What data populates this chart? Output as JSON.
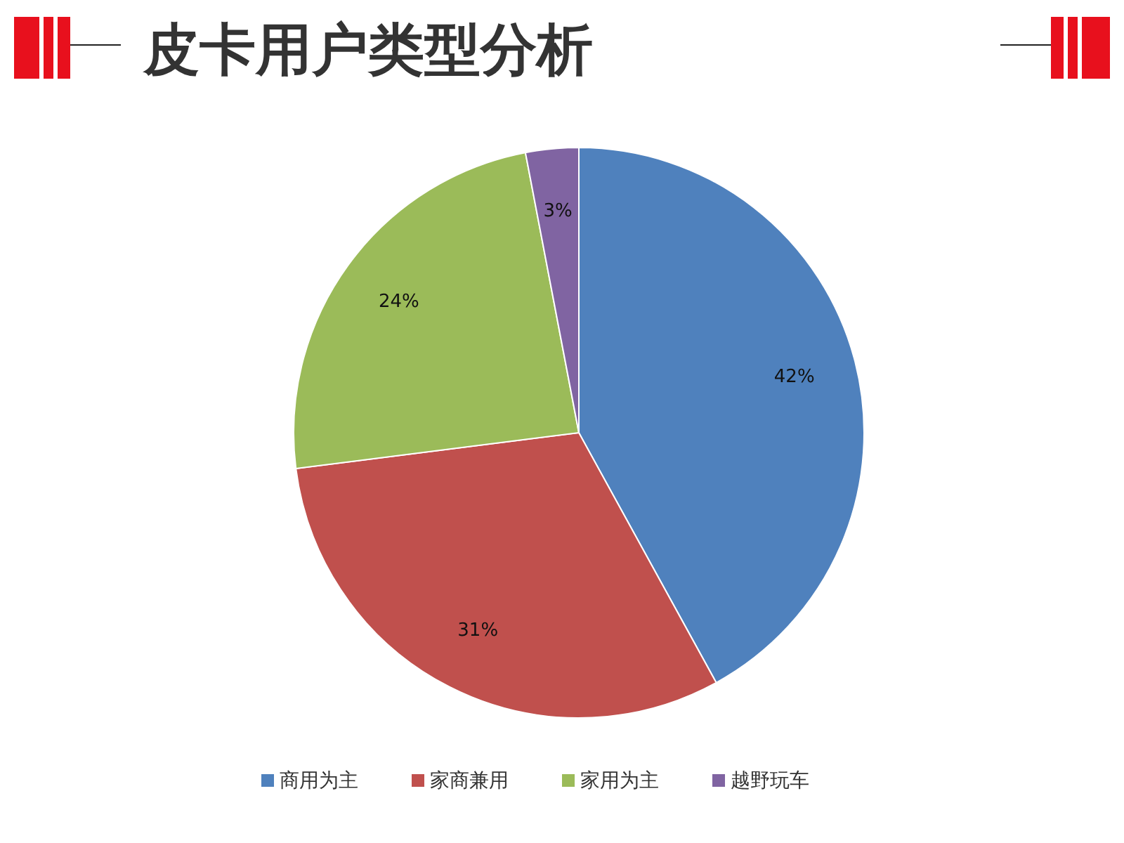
{
  "chart_data": {
    "type": "pie",
    "title": "皮卡用户类型分析",
    "categories": [
      "商用为主",
      "家商兼用",
      "家用为主",
      "越野玩车"
    ],
    "values": [
      42,
      31,
      24,
      3
    ],
    "value_labels": [
      "42%",
      "31%",
      "24%",
      "3%"
    ],
    "colors": [
      "#4f81bd",
      "#c0504d",
      "#9bbb59",
      "#8064a2"
    ],
    "legend": "bottom"
  }
}
